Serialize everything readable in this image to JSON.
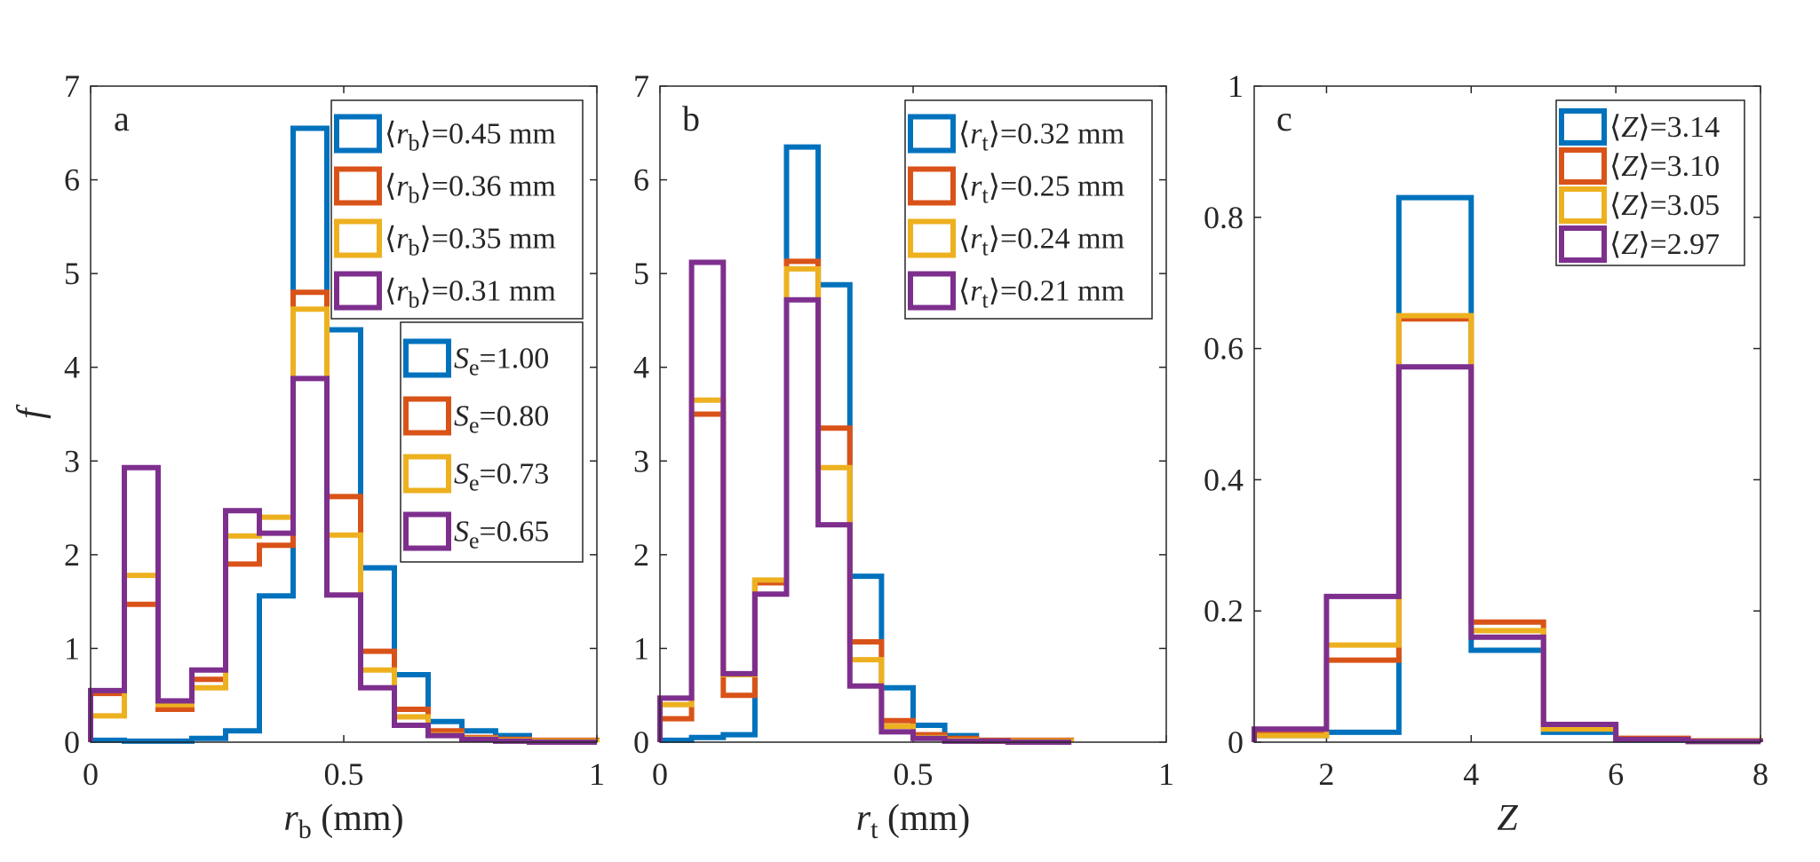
{
  "panels": [
    {
      "letter": "a",
      "ylabel": "f",
      "xlabel": {
        "var": "r",
        "sub": "b",
        "unit": " (mm)"
      },
      "xticks": [
        "0",
        "0.5",
        "1"
      ],
      "yticks": [
        "0",
        "1",
        "2",
        "3",
        "4",
        "5",
        "6",
        "7"
      ],
      "legends": [
        {
          "entries": [
            {
              "pre": "⟨",
              "var": "r",
              "sub": "b",
              "post": "⟩=0.45 mm",
              "color": "#0072BD"
            },
            {
              "pre": "⟨",
              "var": "r",
              "sub": "b",
              "post": "⟩=0.36 mm",
              "color": "#D95319"
            },
            {
              "pre": "⟨",
              "var": "r",
              "sub": "b",
              "post": "⟩=0.35 mm",
              "color": "#EDB120"
            },
            {
              "pre": "⟨",
              "var": "r",
              "sub": "b",
              "post": "⟩=0.31 mm",
              "color": "#7E2F8E"
            }
          ]
        },
        {
          "entries": [
            {
              "pre": "",
              "var": "S",
              "sub": "e",
              "post": "=1.00",
              "color": "#0072BD"
            },
            {
              "pre": "",
              "var": "S",
              "sub": "e",
              "post": "=0.80",
              "color": "#D95319"
            },
            {
              "pre": "",
              "var": "S",
              "sub": "e",
              "post": "=0.73",
              "color": "#EDB120"
            },
            {
              "pre": "",
              "var": "S",
              "sub": "e",
              "post": "=0.65",
              "color": "#7E2F8E"
            }
          ]
        }
      ]
    },
    {
      "letter": "b",
      "ylabel": "",
      "xlabel": {
        "var": "r",
        "sub": "t",
        "unit": " (mm)"
      },
      "xticks": [
        "0",
        "0.5",
        "1"
      ],
      "yticks": [
        "0",
        "1",
        "2",
        "3",
        "4",
        "5",
        "6",
        "7"
      ],
      "legends": [
        {
          "entries": [
            {
              "pre": "⟨",
              "var": "r",
              "sub": "t",
              "post": "⟩=0.32 mm",
              "color": "#0072BD"
            },
            {
              "pre": "⟨",
              "var": "r",
              "sub": "t",
              "post": "⟩=0.25 mm",
              "color": "#D95319"
            },
            {
              "pre": "⟨",
              "var": "r",
              "sub": "t",
              "post": "⟩=0.24 mm",
              "color": "#EDB120"
            },
            {
              "pre": "⟨",
              "var": "r",
              "sub": "t",
              "post": "⟩=0.21 mm",
              "color": "#7E2F8E"
            }
          ]
        }
      ]
    },
    {
      "letter": "c",
      "ylabel": "",
      "xlabel": {
        "var": "Z",
        "sub": "",
        "unit": ""
      },
      "xticks": [
        "2",
        "4",
        "6",
        "8"
      ],
      "yticks": [
        "0",
        "0.2",
        "0.4",
        "0.6",
        "0.8",
        "1"
      ],
      "legends": [
        {
          "entries": [
            {
              "pre": "⟨",
              "var": "Z",
              "sub": "",
              "post": "⟩=3.14",
              "color": "#0072BD"
            },
            {
              "pre": "⟨",
              "var": "Z",
              "sub": "",
              "post": "⟩=3.10",
              "color": "#D95319"
            },
            {
              "pre": "⟨",
              "var": "Z",
              "sub": "",
              "post": "⟩=3.05",
              "color": "#EDB120"
            },
            {
              "pre": "⟨",
              "var": "Z",
              "sub": "",
              "post": "⟩=2.97",
              "color": "#7E2F8E"
            }
          ]
        }
      ]
    }
  ],
  "chart_data": [
    {
      "type": "histogram-stairs",
      "panel": "a",
      "xlabel": "r_b (mm)",
      "ylabel": "f",
      "xlim": [
        0,
        1
      ],
      "ylim": [
        0,
        7
      ],
      "bin_edges": [
        0,
        0.0667,
        0.1333,
        0.2,
        0.2667,
        0.3333,
        0.4,
        0.4667,
        0.5333,
        0.6,
        0.6667,
        0.7333,
        0.8,
        0.8667,
        0.9333,
        1.0
      ],
      "series": [
        {
          "name": "⟨r_b⟩=0.45 mm, S_e=1.00",
          "color": "#0072BD",
          "values": [
            0.02,
            0.01,
            0.01,
            0.04,
            0.12,
            1.56,
            6.55,
            4.4,
            1.86,
            0.72,
            0.22,
            0.12,
            0.07,
            0,
            0
          ]
        },
        {
          "name": "⟨r_b⟩=0.36 mm, S_e=0.80",
          "color": "#D95319",
          "values": [
            0.52,
            1.47,
            0.35,
            0.67,
            1.9,
            2.1,
            4.8,
            2.62,
            0.97,
            0.35,
            0.12,
            0.05,
            0.03,
            0.02,
            0.02
          ]
        },
        {
          "name": "⟨r_b⟩=0.35 mm, S_e=0.73",
          "color": "#EDB120",
          "values": [
            0.28,
            1.78,
            0.4,
            0.58,
            2.2,
            2.4,
            4.62,
            2.21,
            0.77,
            0.27,
            0.08,
            0.04,
            0.02,
            0.01,
            0.01
          ]
        },
        {
          "name": "⟨r_b⟩=0.31 mm, S_e=0.65",
          "color": "#7E2F8E",
          "values": [
            0.55,
            2.93,
            0.44,
            0.77,
            2.47,
            2.23,
            3.88,
            1.57,
            0.58,
            0.18,
            0.07,
            0.03,
            0.01,
            0,
            0
          ]
        }
      ]
    },
    {
      "type": "histogram-stairs",
      "panel": "b",
      "xlabel": "r_t (mm)",
      "ylabel": "",
      "xlim": [
        0,
        1
      ],
      "ylim": [
        0,
        7
      ],
      "bin_edges": [
        0,
        0.0625,
        0.125,
        0.1875,
        0.25,
        0.3125,
        0.375,
        0.4375,
        0.5,
        0.5625,
        0.625,
        0.6875,
        0.75,
        0.8125
      ],
      "series": [
        {
          "name": "⟨r_t⟩=0.32 mm",
          "color": "#0072BD",
          "values": [
            0.02,
            0.05,
            0.08,
            1.7,
            6.35,
            4.88,
            1.77,
            0.58,
            0.18,
            0.07,
            0.02,
            0.01,
            0
          ]
        },
        {
          "name": "⟨r_t⟩=0.25 mm",
          "color": "#D95319",
          "values": [
            0.25,
            3.5,
            0.5,
            1.7,
            5.13,
            3.35,
            1.07,
            0.23,
            0.08,
            0.04,
            0.02,
            0.02,
            0.02
          ]
        },
        {
          "name": "⟨r_t⟩=0.24 mm",
          "color": "#EDB120",
          "values": [
            0.4,
            3.65,
            0.72,
            1.73,
            5.05,
            2.93,
            0.88,
            0.17,
            0.05,
            0.02,
            0.01,
            0.01,
            0.01
          ]
        },
        {
          "name": "⟨r_t⟩=0.21 mm",
          "color": "#7E2F8E",
          "values": [
            0.47,
            5.12,
            0.73,
            1.58,
            4.72,
            2.32,
            0.6,
            0.11,
            0.04,
            0.01,
            0.01,
            0,
            0
          ]
        }
      ]
    },
    {
      "type": "histogram-stairs",
      "panel": "c",
      "xlabel": "Z",
      "ylabel": "",
      "xlim": [
        1,
        8
      ],
      "ylim": [
        0,
        1
      ],
      "bin_edges": [
        1,
        2,
        3,
        4,
        5,
        6,
        7,
        8
      ],
      "series": [
        {
          "name": "⟨Z⟩=3.14",
          "color": "#0072BD",
          "values": [
            0.01,
            0.015,
            0.83,
            0.14,
            0.015,
            0.003,
            0.001
          ]
        },
        {
          "name": "⟨Z⟩=3.10",
          "color": "#D95319",
          "values": [
            0.012,
            0.125,
            0.645,
            0.183,
            0.025,
            0.006,
            0.002
          ]
        },
        {
          "name": "⟨Z⟩=3.05",
          "color": "#EDB120",
          "values": [
            0.01,
            0.148,
            0.65,
            0.17,
            0.02,
            0.004,
            0.001
          ]
        },
        {
          "name": "⟨Z⟩=2.97",
          "color": "#7E2F8E",
          "values": [
            0.02,
            0.222,
            0.572,
            0.16,
            0.027,
            0.004,
            0.001
          ]
        }
      ]
    }
  ]
}
